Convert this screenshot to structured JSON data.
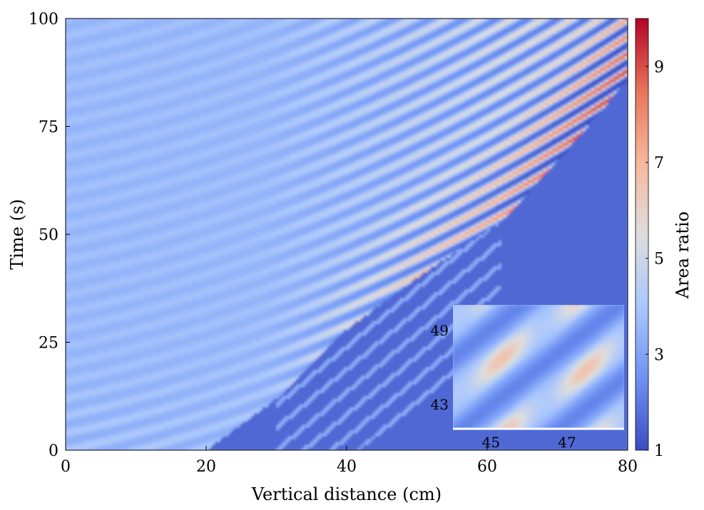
{
  "chart_data": {
    "type": "heatmap",
    "xlabel": "Vertical distance (cm)",
    "ylabel": "Time (s)",
    "colorbar_label": "Area ratio",
    "xlim": [
      0,
      80
    ],
    "ylim": [
      0,
      100
    ],
    "x_ticks": [
      0,
      20,
      40,
      60,
      80
    ],
    "y_ticks": [
      0,
      25,
      50,
      75,
      100
    ],
    "colorbar_range": [
      1,
      10
    ],
    "colorbar_ticks": [
      1,
      3,
      5,
      7,
      9
    ],
    "colormap": [
      "#3b4cc0",
      "#6f92f3",
      "#aac7fd",
      "#dddddd",
      "#f7b89c",
      "#e7745b",
      "#b40426"
    ],
    "background_value": 3.6,
    "front_value": 1.6,
    "front_boundary": [
      {
        "x": 0,
        "t": 0
      },
      {
        "x": 20,
        "t": 0
      },
      {
        "x": 30,
        "t": 12
      },
      {
        "x": 40,
        "t": 28
      },
      {
        "x": 50,
        "t": 40
      },
      {
        "x": 62,
        "t": 53
      },
      {
        "x": 70,
        "t": 67
      },
      {
        "x": 80,
        "t": 86
      }
    ],
    "inset": {
      "x_ticks": [
        45,
        47
      ],
      "y_ticks": [
        43,
        49
      ],
      "xlim": [
        44,
        48.5
      ],
      "ylim": [
        41,
        51
      ]
    }
  }
}
